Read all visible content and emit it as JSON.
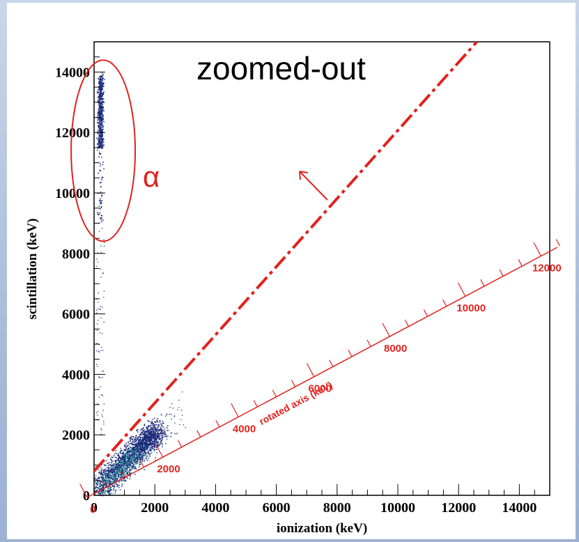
{
  "chart_data": {
    "type": "scatter",
    "title": "",
    "xlabel": "ionization (keV)",
    "ylabel": "scintillation (keV)",
    "xlim": [
      0,
      15000
    ],
    "ylim": [
      0,
      15000
    ],
    "x_ticks": [
      "0",
      "2000",
      "4000",
      "6000",
      "8000",
      "10000",
      "12000",
      "14000"
    ],
    "y_ticks": [
      "0",
      "2000",
      "4000",
      "6000",
      "8000",
      "10000",
      "12000",
      "14000"
    ],
    "grid": false,
    "series": [
      {
        "distribution": "alpha band",
        "x_center": 200,
        "y_range": [
          9000,
          14000
        ],
        "dense_y_range": [
          11500,
          13900
        ],
        "color": "#1b2a7a"
      },
      {
        "distribution": "low-energy cluster",
        "x_range": [
          0,
          2500
        ],
        "y_range": [
          0,
          2500
        ],
        "slope": 1.0,
        "color": "#1b2a7a",
        "core_color": "#2fb7a0"
      }
    ],
    "annotations": {
      "zoom_label": "zoomed-out",
      "alpha_label": "α",
      "cut_line": {
        "from": [
          0,
          800
        ],
        "to": [
          12600,
          15000
        ],
        "style": "dashed",
        "color": "#e0221e"
      },
      "rotated_axis": {
        "label": "rotated axis (keV)",
        "tick_labels": [
          "0",
          "2000",
          "4000",
          "6000",
          "8000",
          "10000",
          "12000"
        ],
        "color": "#e0221e"
      }
    }
  }
}
